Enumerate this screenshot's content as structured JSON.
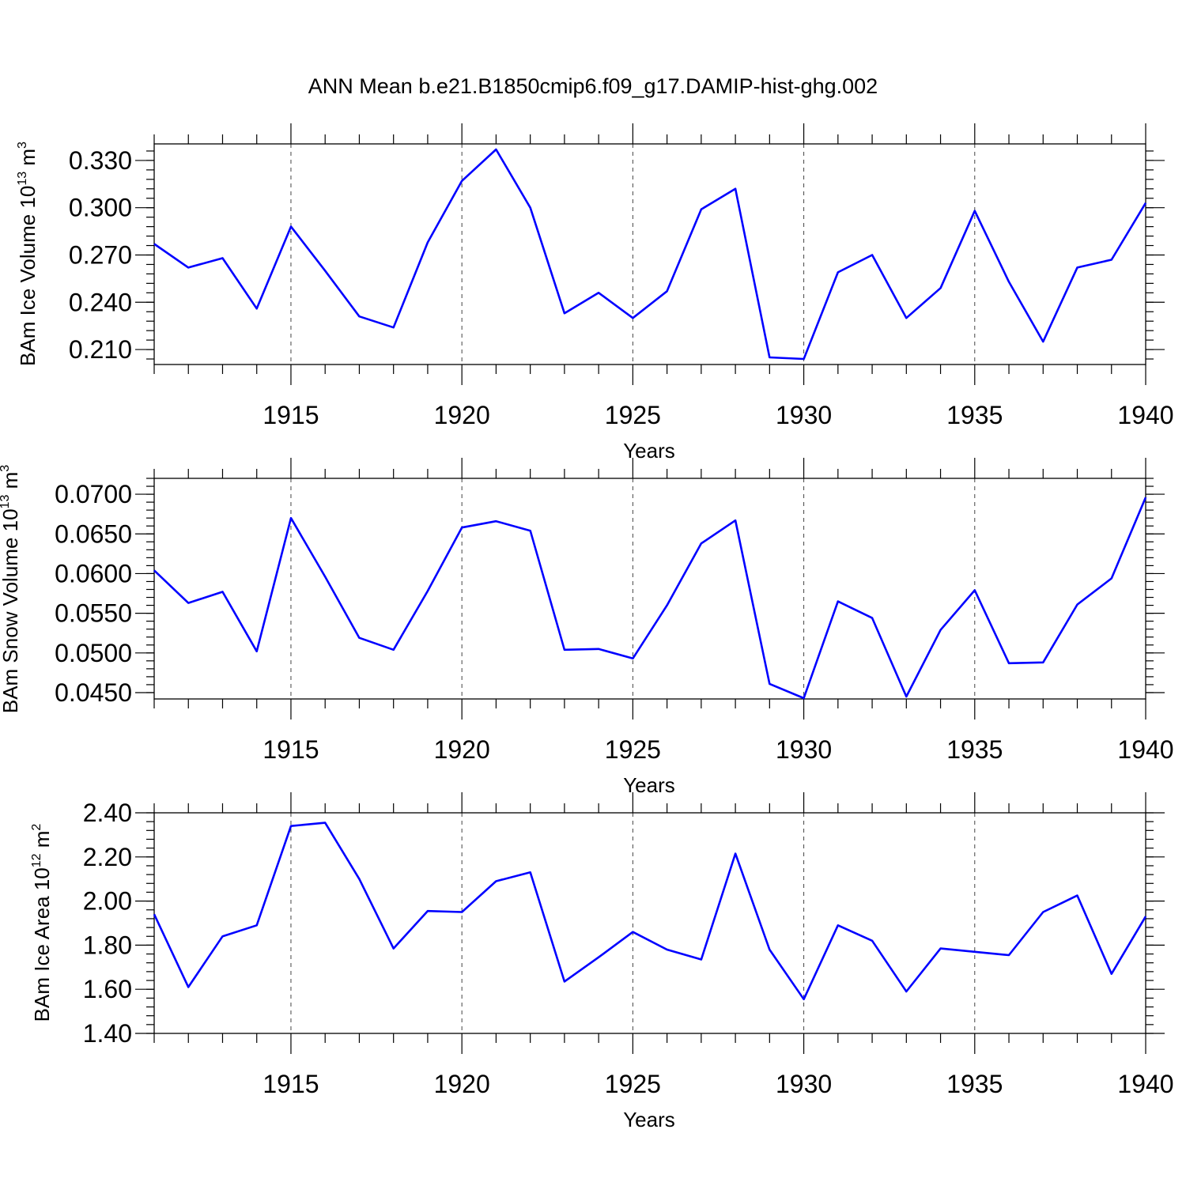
{
  "figure": {
    "title": "ANN Mean b.e21.B1850cmip6.f09_g17.DAMIP-hist-ghg.002",
    "line_color": "#0000ff"
  },
  "chart_data": [
    {
      "type": "line",
      "title": "ANN Mean b.e21.B1850cmip6.f09_g17.DAMIP-hist-ghg.002",
      "xlabel": "Years",
      "ylabel": {
        "base": "BAm Ice Volume 10",
        "exp": "13",
        "unit": " m",
        "unit_exp": "3"
      },
      "xlim": [
        1911,
        1940
      ],
      "ylim": [
        0.2005,
        0.3405
      ],
      "xticks": [
        1915,
        1920,
        1925,
        1930,
        1935,
        1940
      ],
      "xtick_labels": [
        "1915",
        "1920",
        "1925",
        "1930",
        "1935",
        "1940"
      ],
      "yticks": [
        0.21,
        0.24,
        0.27,
        0.3,
        0.33
      ],
      "ytick_labels": [
        "0.210",
        "0.240",
        "0.270",
        "0.300",
        "0.330"
      ],
      "ytick_minor_step": 0.006,
      "grid": "dashed vertical at major x ticks",
      "series": [
        {
          "x": [
            1911,
            1912,
            1913,
            1914,
            1915,
            1916,
            1917,
            1918,
            1919,
            1920,
            1921,
            1922,
            1923,
            1924,
            1925,
            1926,
            1927,
            1928,
            1929,
            1930,
            1931,
            1932,
            1933,
            1934,
            1935,
            1936,
            1937,
            1938,
            1939,
            1940
          ],
          "values": [
            0.277,
            0.262,
            0.268,
            0.236,
            0.288,
            0.26,
            0.231,
            0.224,
            0.278,
            0.317,
            0.337,
            0.3,
            0.233,
            0.246,
            0.23,
            0.247,
            0.299,
            0.312,
            0.205,
            0.204,
            0.259,
            0.27,
            0.23,
            0.249,
            0.298,
            0.253,
            0.215,
            0.262,
            0.267,
            0.303
          ]
        }
      ]
    },
    {
      "type": "line",
      "xlabel": "Years",
      "ylabel": {
        "base": "BAm Snow Volume 10",
        "exp": "13",
        "unit": " m",
        "unit_exp": "3"
      },
      "xlim": [
        1911,
        1940
      ],
      "ylim": [
        0.0442,
        0.072
      ],
      "xticks": [
        1915,
        1920,
        1925,
        1930,
        1935,
        1940
      ],
      "xtick_labels": [
        "1915",
        "1920",
        "1925",
        "1930",
        "1935",
        "1940"
      ],
      "yticks": [
        0.045,
        0.05,
        0.055,
        0.06,
        0.065,
        0.07
      ],
      "ytick_labels": [
        "0.0450",
        "0.0500",
        "0.0550",
        "0.0600",
        "0.0650",
        "0.0700"
      ],
      "ytick_minor_step": 0.001,
      "grid": "dashed vertical at major x ticks",
      "series": [
        {
          "x": [
            1911,
            1912,
            1913,
            1914,
            1915,
            1916,
            1917,
            1918,
            1919,
            1920,
            1921,
            1922,
            1923,
            1924,
            1925,
            1926,
            1927,
            1928,
            1929,
            1930,
            1931,
            1932,
            1933,
            1934,
            1935,
            1936,
            1937,
            1938,
            1939,
            1940
          ],
          "values": [
            0.0604,
            0.0563,
            0.0577,
            0.0502,
            0.067,
            0.0596,
            0.0519,
            0.0504,
            0.0578,
            0.0658,
            0.0666,
            0.0654,
            0.0504,
            0.0505,
            0.0493,
            0.056,
            0.0638,
            0.0667,
            0.0461,
            0.0443,
            0.0565,
            0.0544,
            0.0445,
            0.0529,
            0.0579,
            0.0487,
            0.0488,
            0.0561,
            0.0594,
            0.0696
          ]
        }
      ]
    },
    {
      "type": "line",
      "xlabel": "Years",
      "ylabel": {
        "base": "BAm Ice Area 10",
        "exp": "12",
        "unit": " m",
        "unit_exp": "2"
      },
      "xlim": [
        1911,
        1940
      ],
      "ylim": [
        1.4,
        2.4
      ],
      "xticks": [
        1915,
        1920,
        1925,
        1930,
        1935,
        1940
      ],
      "xtick_labels": [
        "1915",
        "1920",
        "1925",
        "1930",
        "1935",
        "1940"
      ],
      "yticks": [
        1.4,
        1.6,
        1.8,
        2.0,
        2.2,
        2.4
      ],
      "ytick_labels": [
        "1.40",
        "1.60",
        "1.80",
        "2.00",
        "2.20",
        "2.40"
      ],
      "ytick_minor_step": 0.04,
      "grid": "dashed vertical at major x ticks",
      "series": [
        {
          "x": [
            1911,
            1912,
            1913,
            1914,
            1915,
            1916,
            1917,
            1918,
            1919,
            1920,
            1921,
            1922,
            1923,
            1924,
            1925,
            1926,
            1927,
            1928,
            1929,
            1930,
            1931,
            1932,
            1933,
            1934,
            1935,
            1936,
            1937,
            1938,
            1939,
            1940
          ],
          "values": [
            1.94,
            1.61,
            1.84,
            1.89,
            2.34,
            2.355,
            2.1,
            1.785,
            1.955,
            1.95,
            2.09,
            2.13,
            1.635,
            1.745,
            1.86,
            1.78,
            1.735,
            2.215,
            1.78,
            1.555,
            1.89,
            1.82,
            1.59,
            1.785,
            1.77,
            1.755,
            1.95,
            2.025,
            1.67,
            1.93
          ]
        }
      ]
    }
  ]
}
